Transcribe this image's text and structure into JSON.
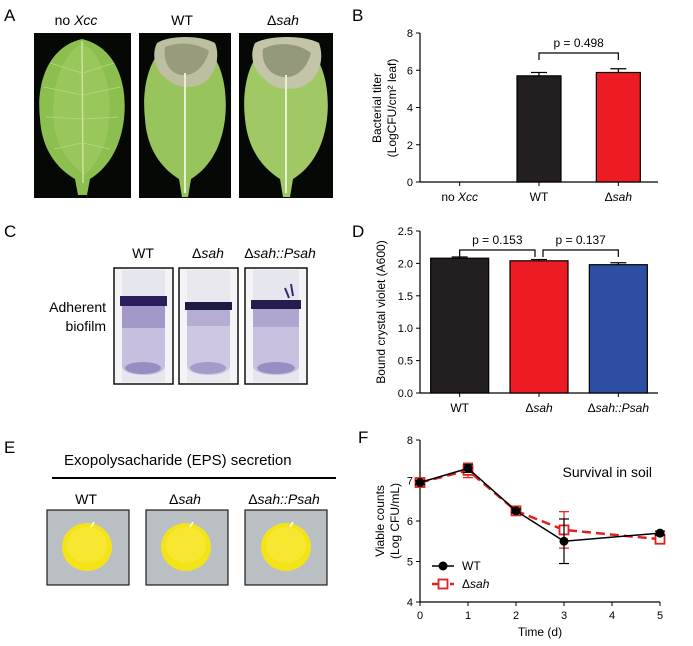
{
  "panels": {
    "A": {
      "letter": "A",
      "leaf_labels": [
        {
          "prefix": "no ",
          "italic": "Xcc"
        },
        {
          "prefix": "WT",
          "italic": ""
        },
        {
          "prefix": "Δ",
          "italic": "sah"
        }
      ]
    },
    "B": {
      "letter": "B",
      "p_label": "p = 0.498",
      "ylabel_line1": "Bacterial titer",
      "ylabel_line2": "(LogCFU/cm² leaf)",
      "xtick_prefix": [
        "no ",
        "WT",
        "Δ"
      ],
      "xtick_italic": [
        "Xcc",
        "",
        "sah"
      ]
    },
    "C": {
      "letter": "C",
      "tube_labels": [
        {
          "prefix": "WT",
          "italic": ""
        },
        {
          "prefix": "Δ",
          "italic": "sah"
        },
        {
          "prefix": "Δ",
          "italic": "sah::Psah"
        }
      ],
      "side_label_line1": "Adherent",
      "side_label_line2": "biofilm"
    },
    "D": {
      "letter": "D",
      "p_label_1": "p = 0.153",
      "p_label_2": "p = 0.137",
      "ylabel": "Bound crystal violet (A600)",
      "xtick_prefix": [
        "WT",
        "Δ",
        "Δ"
      ],
      "xtick_italic": [
        "",
        "sah",
        "sah::Psah"
      ]
    },
    "E": {
      "letter": "E",
      "title": "Exopolysacharide (EPS) secretion",
      "colony_labels": [
        {
          "prefix": "WT",
          "italic": ""
        },
        {
          "prefix": "Δ",
          "italic": "sah"
        },
        {
          "prefix": "Δ",
          "italic": "sah::Psah"
        }
      ]
    },
    "F": {
      "letter": "F",
      "annotation": "Survival in soil",
      "xlabel": "Time (d)",
      "ylabel_line1": "Viable counts",
      "ylabel_line2": "(Log CFU/mL)",
      "legend": [
        {
          "prefix": "WT",
          "italic": ""
        },
        {
          "prefix": "Δ",
          "italic": "sah"
        }
      ]
    }
  },
  "chart_data": [
    {
      "panel": "B",
      "type": "bar",
      "categories": [
        "no Xcc",
        "WT",
        "Δsah"
      ],
      "values": [
        0,
        5.7,
        5.88
      ],
      "errors": [
        0,
        0.18,
        0.2
      ],
      "colors": [
        "#ffffff",
        "#231f20",
        "#ed1c24"
      ],
      "ylim": [
        0,
        8
      ],
      "yticks": [
        0,
        2,
        4,
        6,
        8
      ],
      "comparisons": [
        {
          "from": 1,
          "to": 2,
          "label": "p = 0.498"
        }
      ]
    },
    {
      "panel": "D",
      "type": "bar",
      "categories": [
        "WT",
        "Δsah",
        "Δsah::Psah"
      ],
      "values": [
        2.08,
        2.04,
        1.98
      ],
      "errors": [
        0.02,
        0.02,
        0.03
      ],
      "colors": [
        "#231f20",
        "#ed1c24",
        "#2e4ea1"
      ],
      "ylim": [
        0,
        2.5
      ],
      "yticks": [
        0.0,
        0.5,
        1.0,
        1.5,
        2.0,
        2.5
      ],
      "ytick_labels": [
        "0.0",
        "0.5",
        "1.0",
        "1.5",
        "2.0",
        "2.5"
      ],
      "comparisons": [
        {
          "from": 0,
          "to": 1,
          "label": "p = 0.153"
        },
        {
          "from": 1,
          "to": 2,
          "label": "p = 0.137"
        }
      ]
    },
    {
      "panel": "F",
      "type": "line",
      "x": [
        0,
        1,
        2,
        3,
        5
      ],
      "xlim": [
        0,
        5
      ],
      "xticks": [
        0,
        1,
        2,
        3,
        4,
        5
      ],
      "ylim": [
        4,
        8
      ],
      "yticks": [
        4,
        5,
        6,
        7,
        8
      ],
      "series": [
        {
          "name": "WT",
          "values": [
            6.95,
            7.3,
            6.25,
            5.5,
            5.7
          ],
          "errors": [
            0.05,
            0.1,
            0.05,
            0.55,
            0.05
          ],
          "color": "#000000",
          "marker": "filled-circle",
          "dash": "solid"
        },
        {
          "name": "Δsah",
          "values": [
            6.95,
            7.25,
            6.25,
            5.78,
            5.55
          ],
          "errors": [
            0.05,
            0.18,
            0.05,
            0.45,
            0.05
          ],
          "color": "#e02020",
          "marker": "open-square",
          "dash": "dashed"
        }
      ]
    }
  ]
}
